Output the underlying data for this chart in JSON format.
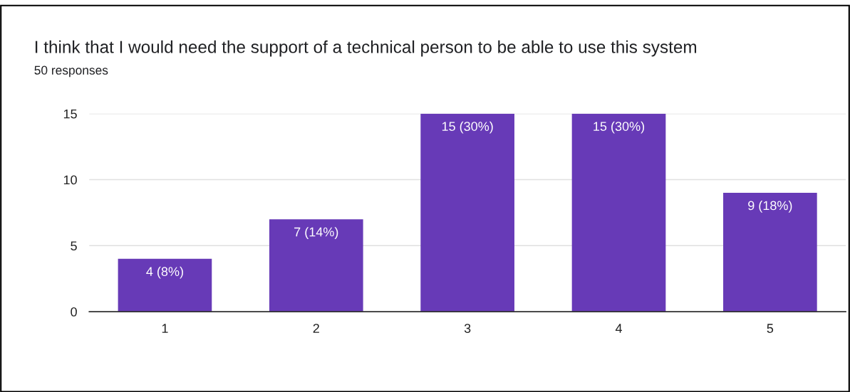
{
  "chart_data": {
    "type": "bar",
    "title": "I think that I would need the support of a technical person to be able to use this system",
    "subtitle": "50 responses",
    "categories": [
      "1",
      "2",
      "3",
      "4",
      "5"
    ],
    "values": [
      4,
      7,
      15,
      15,
      9
    ],
    "value_labels": [
      "4 (8%)",
      "7 (14%)",
      "15 (30%)",
      "15 (30%)",
      "9 (18%)"
    ],
    "color": "#673ab7",
    "ylim": [
      0,
      15
    ],
    "yticks": [
      0,
      5,
      10,
      15
    ],
    "grid": "y",
    "legend": false
  }
}
